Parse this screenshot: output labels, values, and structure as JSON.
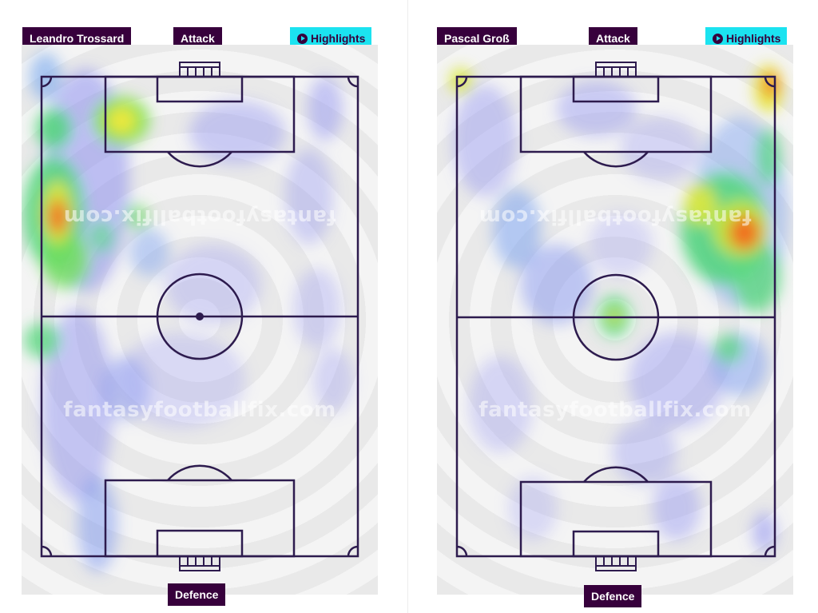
{
  "panels": [
    {
      "player_name": "Leandro Trossard",
      "attack_label": "Attack",
      "defence_label": "Defence",
      "highlights_label": "Highlights",
      "watermark": "fantasyfootballfix.com"
    },
    {
      "player_name": "Pascal Groß",
      "attack_label": "Attack",
      "defence_label": "Defence",
      "highlights_label": "Highlights",
      "watermark": "fantasyfootballfix.com"
    }
  ],
  "colors": {
    "brand_purple": "#37003c",
    "highlight_cyan": "#1be3f0",
    "pitch_line": "#2d1b4e"
  },
  "icons": [
    "play-icon"
  ]
}
